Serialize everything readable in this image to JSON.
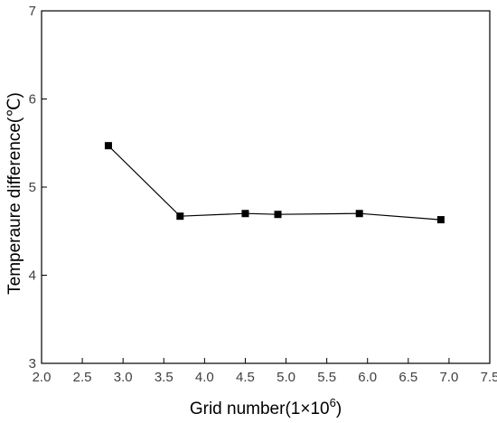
{
  "chart_data": {
    "type": "line",
    "title": "",
    "xlabel": "Grid number(1×10",
    "xlabel_sup": "6",
    "xlabel_end": ")",
    "ylabel": "Temperaure difference(℃)",
    "xlim": [
      2.0,
      7.5
    ],
    "ylim": [
      3,
      7
    ],
    "x_ticks": [
      "2.0",
      "2.5",
      "3.0",
      "3.5",
      "4.0",
      "4.5",
      "5.0",
      "5.5",
      "6.0",
      "6.5",
      "7.0",
      "7.5"
    ],
    "y_ticks": [
      "3",
      "4",
      "5",
      "6",
      "7"
    ],
    "grid": false,
    "series": [
      {
        "marker": "square",
        "color": "#000000",
        "x": [
          2.82,
          3.7,
          4.5,
          4.9,
          5.9,
          6.9
        ],
        "y": [
          5.47,
          4.67,
          4.7,
          4.69,
          4.7,
          4.63
        ]
      }
    ]
  }
}
